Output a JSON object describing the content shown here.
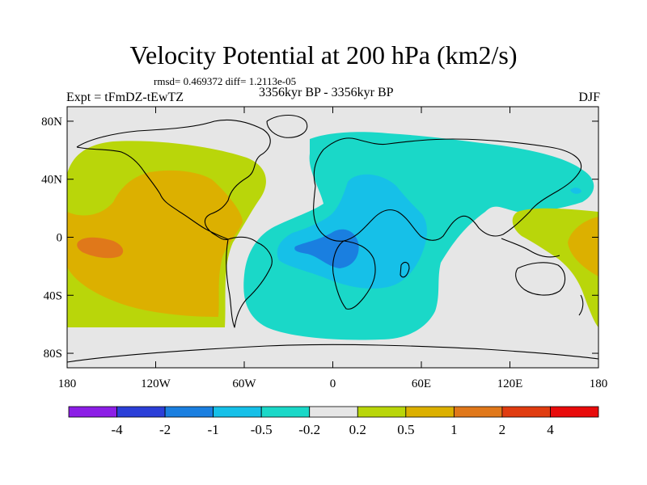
{
  "chart_data": {
    "type": "heatmap",
    "title": "Velocity Potential at 200 hPa (km2/s)",
    "stats_text": "rmsd= 0.469372 diff= 1.2113e-05",
    "left_subtitle": "Expt = tFmDZ-tEwTZ",
    "center_subtitle": "3356kyr BP - 3356kyr BP",
    "right_subtitle": "DJF",
    "x_ticks": [
      "180",
      "120W",
      "60W",
      "0",
      "60E",
      "120E",
      "180"
    ],
    "y_ticks": [
      "80N",
      "40N",
      "0",
      "40S",
      "80S"
    ],
    "colorbar_labels": [
      "-4",
      "-2",
      "-1",
      "-0.5",
      "-0.2",
      "0.2",
      "0.5",
      "1",
      "2",
      "4"
    ],
    "colorbar_colors": [
      "#8c1ee6",
      "#2b3fd8",
      "#1a7fe0",
      "#16c0e8",
      "#1ad8c8",
      "#e6e6e6",
      "#b9d60a",
      "#dcb000",
      "#e0781a",
      "#e03c10",
      "#e80b0b"
    ],
    "regions": [
      {
        "name": "pacific-positive",
        "level": "0.2 to 0.5",
        "lon": -150,
        "lat": 20
      },
      {
        "name": "pacific-core",
        "level": "0.5 to 1",
        "lon": -140,
        "lat": 5
      },
      {
        "name": "pacific-max",
        "level": "1 to 2",
        "lon": -165,
        "lat": 0
      },
      {
        "name": "eurasia-africa-negative",
        "level": "-0.5 to -0.2",
        "lon": 30,
        "lat": 15
      },
      {
        "name": "africa-core",
        "level": "-1 to -0.5",
        "lon": 10,
        "lat": -5
      },
      {
        "name": "africa-min",
        "level": "-2 to -1",
        "lon": 0,
        "lat": -10
      },
      {
        "name": "west-pacific-positive",
        "level": "0.2 to 0.5",
        "lon": 160,
        "lat": 5
      },
      {
        "name": "west-pacific-core",
        "level": "0.5 to 1",
        "lon": 175,
        "lat": 0
      }
    ]
  }
}
